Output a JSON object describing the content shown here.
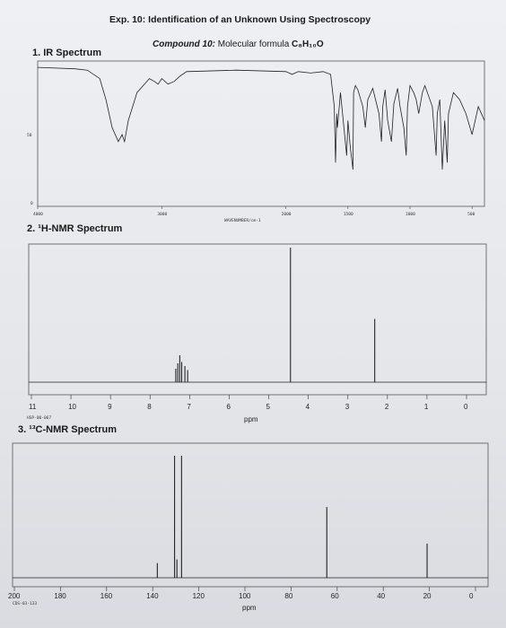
{
  "header": {
    "title": "Exp. 10: Identification of an Unknown Using Spectroscopy",
    "compound_label": "Compound 10:",
    "formula_label": "Molecular formula",
    "formula": "C₈H₁₀O"
  },
  "ir": {
    "heading": "1. IR Spectrum",
    "y_ticks": [
      "50",
      "0"
    ],
    "x_ticks": [
      "4000",
      "3000",
      "2000",
      "1500",
      "1000",
      "500"
    ],
    "x_label": "WAVENUMBER/cm-1"
  },
  "hnmr": {
    "heading": "2. ¹H-NMR Spectrum",
    "x_ticks": [
      "11",
      "10",
      "9",
      "8",
      "7",
      "6",
      "5",
      "4",
      "3",
      "2",
      "1",
      "0"
    ],
    "x_label": "ppm",
    "code": "HSP-00-067"
  },
  "cnmr": {
    "heading": "3. ¹³C-NMR Spectrum",
    "x_ticks": [
      "200",
      "180",
      "160",
      "140",
      "120",
      "100",
      "80",
      "60",
      "40",
      "20",
      "0"
    ],
    "x_label": "ppm",
    "code": "CDS-03-133"
  },
  "chart_data": [
    {
      "type": "line",
      "name_ref": "ir",
      "x_unit": "cm-1",
      "xlim": [
        4000,
        400
      ],
      "ylim": [
        0,
        100
      ],
      "points": [
        [
          4000,
          98
        ],
        [
          3700,
          97
        ],
        [
          3600,
          96
        ],
        [
          3500,
          90
        ],
        [
          3450,
          75
        ],
        [
          3400,
          55
        ],
        [
          3350,
          45
        ],
        [
          3320,
          50
        ],
        [
          3300,
          45
        ],
        [
          3270,
          60
        ],
        [
          3200,
          80
        ],
        [
          3100,
          90
        ],
        [
          3060,
          88
        ],
        [
          3030,
          86
        ],
        [
          3000,
          90
        ],
        [
          2950,
          86
        ],
        [
          2900,
          88
        ],
        [
          2850,
          92
        ],
        [
          2800,
          95
        ],
        [
          2400,
          96
        ],
        [
          2000,
          95
        ],
        [
          1950,
          93
        ],
        [
          1900,
          95
        ],
        [
          1800,
          94
        ],
        [
          1700,
          95
        ],
        [
          1640,
          93
        ],
        [
          1610,
          70
        ],
        [
          1600,
          30
        ],
        [
          1590,
          65
        ],
        [
          1585,
          55
        ],
        [
          1560,
          80
        ],
        [
          1510,
          35
        ],
        [
          1500,
          60
        ],
        [
          1480,
          40
        ],
        [
          1460,
          25
        ],
        [
          1455,
          80
        ],
        [
          1440,
          85
        ],
        [
          1420,
          82
        ],
        [
          1380,
          70
        ],
        [
          1360,
          55
        ],
        [
          1340,
          75
        ],
        [
          1300,
          83
        ],
        [
          1250,
          65
        ],
        [
          1230,
          45
        ],
        [
          1220,
          70
        ],
        [
          1200,
          82
        ],
        [
          1180,
          60
        ],
        [
          1150,
          45
        ],
        [
          1130,
          72
        ],
        [
          1100,
          83
        ],
        [
          1080,
          70
        ],
        [
          1050,
          55
        ],
        [
          1030,
          35
        ],
        [
          1020,
          70
        ],
        [
          1000,
          85
        ],
        [
          970,
          80
        ],
        [
          950,
          75
        ],
        [
          930,
          65
        ],
        [
          900,
          80
        ],
        [
          880,
          85
        ],
        [
          820,
          70
        ],
        [
          790,
          35
        ],
        [
          780,
          65
        ],
        [
          760,
          75
        ],
        [
          740,
          25
        ],
        [
          720,
          60
        ],
        [
          700,
          30
        ],
        [
          690,
          65
        ],
        [
          650,
          80
        ],
        [
          600,
          75
        ],
        [
          550,
          65
        ],
        [
          500,
          50
        ],
        [
          450,
          70
        ],
        [
          400,
          60
        ]
      ]
    },
    {
      "type": "bar",
      "name_ref": "hnmr",
      "x_unit": "ppm",
      "xlim": [
        11,
        0
      ],
      "peaks": [
        {
          "ppm": 7.35,
          "height": 0.1
        },
        {
          "ppm": 7.3,
          "height": 0.14
        },
        {
          "ppm": 7.25,
          "height": 0.2
        },
        {
          "ppm": 7.2,
          "height": 0.15
        },
        {
          "ppm": 7.12,
          "height": 0.12
        },
        {
          "ppm": 7.05,
          "height": 0.09
        },
        {
          "ppm": 4.45,
          "height": 1.0
        },
        {
          "ppm": 2.32,
          "height": 0.47
        }
      ]
    },
    {
      "type": "bar",
      "name_ref": "cnmr",
      "x_unit": "ppm",
      "xlim": [
        200,
        0
      ],
      "peaks": [
        {
          "ppm": 138.0,
          "height": 0.12
        },
        {
          "ppm": 130.5,
          "height": 1.0
        },
        {
          "ppm": 129.5,
          "height": 0.15
        },
        {
          "ppm": 127.5,
          "height": 1.0
        },
        {
          "ppm": 64.5,
          "height": 0.58
        },
        {
          "ppm": 21.0,
          "height": 0.28
        }
      ]
    }
  ]
}
